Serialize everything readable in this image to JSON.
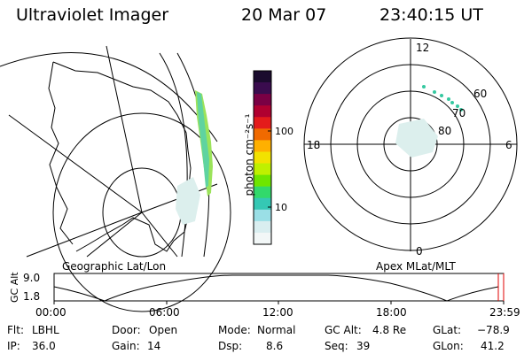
{
  "header": {
    "title": "Ultraviolet Imager",
    "date": "20 Mar 07",
    "time": "23:40:15 UT"
  },
  "colorbar": {
    "ylabel": "photon cm⁻²s⁻¹",
    "ticks": [
      "100",
      "10"
    ],
    "colors": [
      "#1b0b2e",
      "#3a0c4e",
      "#7a0044",
      "#b00030",
      "#e41b1b",
      "#f06a00",
      "#ffb000",
      "#f2e200",
      "#bff000",
      "#6ee600",
      "#32d96b",
      "#35c8b4",
      "#9adfe6",
      "#d9eef0",
      "#f2f7f7"
    ]
  },
  "polar_plot": {
    "mlt_labels": {
      "top": "12",
      "left": "18",
      "right": "6",
      "bottom": "0"
    },
    "lat_labels": [
      "60",
      "70",
      "80"
    ]
  },
  "panel_labels": {
    "geographic": "Geographic Lat/Lon",
    "apex": "Apex MLat/MLT"
  },
  "altitude_plot": {
    "ylabel": "GC Alt",
    "y_ticks": [
      "9.0",
      "1.8"
    ],
    "x_ticks": [
      "00:00",
      "06:00",
      "12:00",
      "18:00",
      "23:59"
    ],
    "marker_color": "#e00000"
  },
  "status": {
    "flt_label": "Flt:",
    "flt_value": "LBHL",
    "door_label": "Door:",
    "door_value": "Open",
    "mode_label": "Mode:",
    "mode_value": "Normal",
    "gcalt_label": "GC Alt:",
    "gcalt_value": "4.8 Re",
    "glat_label": "GLat:",
    "glat_value": "−78.9",
    "ip_label": "IP:",
    "ip_value": "36.0",
    "gain_label": "Gain:",
    "gain_value": "14",
    "dsp_label": "Dsp:",
    "dsp_value": "8.6",
    "seq_label": "Seq:",
    "seq_value": "39",
    "glon_label": "GLon:",
    "glon_value": "41.2"
  }
}
